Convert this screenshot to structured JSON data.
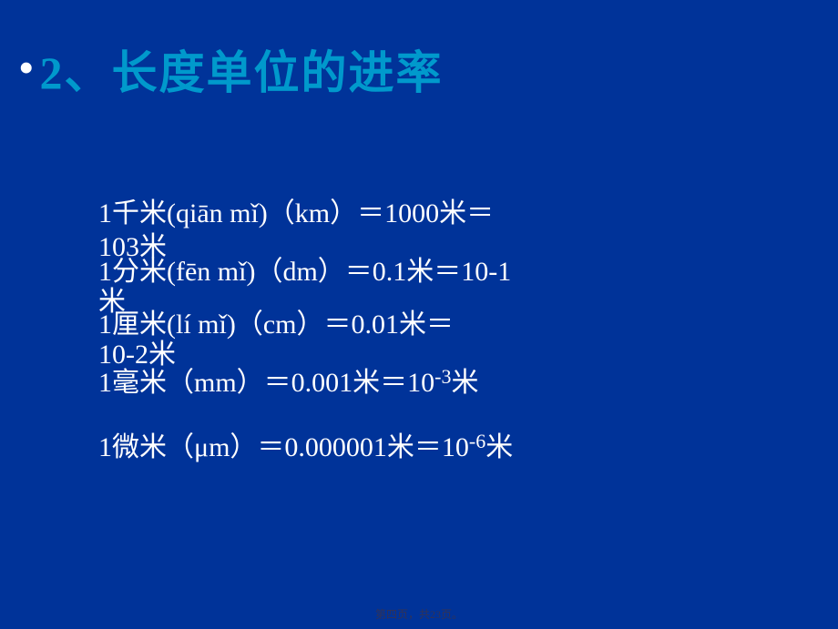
{
  "colors": {
    "background": "#003399",
    "title": "#0099cc",
    "text": "#ffffff",
    "bullet": "#ffffff",
    "footer": "#333355"
  },
  "fonts": {
    "title_size": 50,
    "body_size": 30,
    "sup_size": 22,
    "footer_size": 12
  },
  "title": "2、长度单位的进率",
  "bullet": "•",
  "lines": {
    "km_a": "1千米(qiān mǐ)（km）＝1000米＝",
    "km_b": "103米",
    "dm_a": "1分米(fēn mǐ)（dm）＝0.1米＝10-1",
    "dm_b": "米",
    "cm_a": "1厘米(lí mǐ)（cm）＝0.01米＝",
    "cm_b": "10-2米",
    "mm": "1毫米（mm）＝0.001米＝10",
    "mm_sup": "-3",
    "mm_tail": "米",
    "um": "1微米（μm）＝0.000001米＝10",
    "um_sup": "-6",
    "um_tail": "米"
  },
  "footer": "第四页，共23页。"
}
